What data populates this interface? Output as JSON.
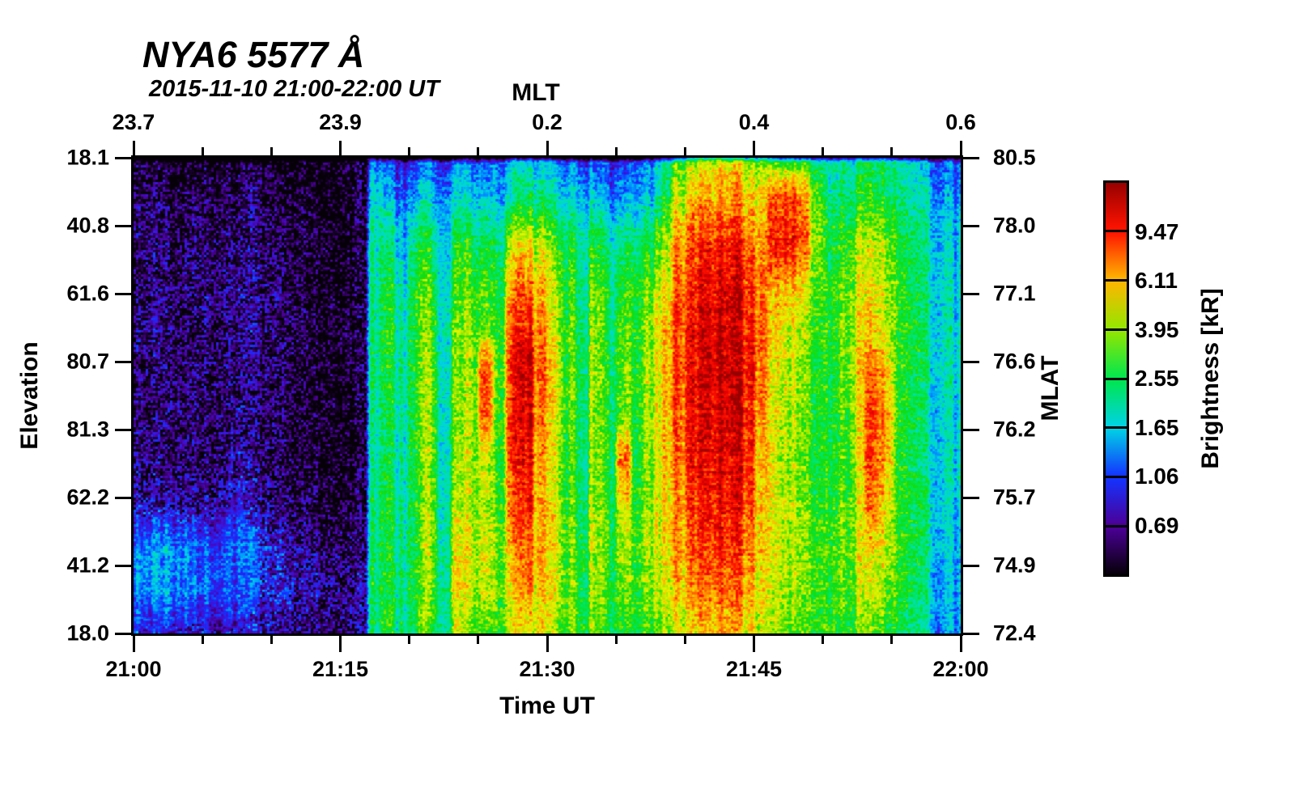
{
  "header": {
    "title": "NYA6 5577 Å",
    "subtitle": "2015-11-10 21:00-22:00 UT"
  },
  "axes": {
    "top": {
      "label": "MLT",
      "tick_labels": [
        "23.7",
        "23.9",
        "0.2",
        "0.4",
        "0.6"
      ],
      "minor_per_interval": 2
    },
    "bottom": {
      "label": "Time UT",
      "tick_labels": [
        "21:00",
        "21:15",
        "21:30",
        "21:45",
        "22:00"
      ],
      "minor_per_interval": 2
    },
    "left": {
      "label": "Elevation",
      "tick_labels": [
        "18.1",
        "40.8",
        "61.6",
        "80.7",
        "81.3",
        "62.2",
        "41.2",
        "18.0"
      ]
    },
    "right": {
      "label": "MLAT",
      "tick_labels": [
        "80.5",
        "78.0",
        "77.1",
        "76.6",
        "76.2",
        "75.7",
        "74.9",
        "72.4"
      ]
    }
  },
  "colorbar": {
    "label": "Brightness [kR]",
    "tick_labels": [
      "9.47",
      "6.11",
      "3.95",
      "2.55",
      "1.65",
      "1.06",
      "0.69"
    ]
  },
  "chart_data": {
    "type": "heatmap",
    "title": "NYA6 5577 Å",
    "subtitle": "2015-11-10 21:00-22:00 UT",
    "station": "NYA6",
    "wavelength_angstrom": 5577,
    "x_axis": {
      "label": "Time UT",
      "start": "21:00",
      "end": "22:00",
      "minutes": 60,
      "major_ticks": [
        "21:00",
        "21:15",
        "21:30",
        "21:45",
        "22:00"
      ],
      "minor_tick_minutes": 5
    },
    "x_axis_top": {
      "label": "MLT",
      "major_ticks": [
        "23.7",
        "23.9",
        "0.2",
        "0.4",
        "0.6"
      ]
    },
    "y_axis_left": {
      "label": "Elevation",
      "ticks": [
        18.1,
        40.8,
        61.6,
        80.7,
        81.3,
        62.2,
        41.2,
        18.0
      ]
    },
    "y_axis_right": {
      "label": "MLAT",
      "ticks": [
        80.5,
        78.0,
        77.1,
        76.6,
        76.2,
        75.7,
        74.9,
        72.4
      ]
    },
    "value_axis": {
      "label": "Brightness [kR]",
      "scale": "log",
      "min": 0.446,
      "max": 14.65,
      "colorbar_ticks": [
        9.47,
        6.11,
        3.95,
        2.55,
        1.65,
        1.06,
        0.69
      ]
    },
    "colorscale": [
      [
        0.0,
        "#060008"
      ],
      [
        0.0625,
        "#200040"
      ],
      [
        0.125,
        "#4b0096"
      ],
      [
        0.1875,
        "#3c14dc"
      ],
      [
        0.25,
        "#1432ff"
      ],
      [
        0.3125,
        "#008cff"
      ],
      [
        0.375,
        "#00d2e6"
      ],
      [
        0.4375,
        "#00e1aa"
      ],
      [
        0.5,
        "#00e650"
      ],
      [
        0.5625,
        "#14dc0a"
      ],
      [
        0.625,
        "#96e600"
      ],
      [
        0.6875,
        "#e6f500"
      ],
      [
        0.75,
        "#ffb400"
      ],
      [
        0.8125,
        "#ff6e00"
      ],
      [
        0.875,
        "#ff1400"
      ],
      [
        0.9375,
        "#e10000"
      ],
      [
        1.0,
        "#960000"
      ]
    ],
    "grid_minutes": 60,
    "grid_rows": 12,
    "row_axis_note": "rows span elevation top 18.1 through zenith to bottom 18.0",
    "columns_kR": [
      [
        0.5,
        0.55,
        0.55,
        0.6,
        0.6,
        0.6,
        0.6,
        0.65,
        0.7,
        1.25,
        1.3,
        0.85
      ],
      [
        0.5,
        0.6,
        0.6,
        0.65,
        0.65,
        0.6,
        0.6,
        0.65,
        0.75,
        1.35,
        1.4,
        0.9
      ],
      [
        0.5,
        0.55,
        0.6,
        0.6,
        0.6,
        0.6,
        0.6,
        0.6,
        0.7,
        1.4,
        1.45,
        0.9
      ],
      [
        0.45,
        0.5,
        0.55,
        0.6,
        0.55,
        0.55,
        0.55,
        0.6,
        0.65,
        1.2,
        1.3,
        0.85
      ],
      [
        0.5,
        0.55,
        0.6,
        0.65,
        0.6,
        0.6,
        0.6,
        0.6,
        0.7,
        1.15,
        1.25,
        0.8
      ],
      [
        0.55,
        0.6,
        0.65,
        0.7,
        0.65,
        0.65,
        0.6,
        0.65,
        0.7,
        1.25,
        1.35,
        0.85
      ],
      [
        0.5,
        0.6,
        0.65,
        0.7,
        0.7,
        0.65,
        0.65,
        0.7,
        0.85,
        1.35,
        1.45,
        0.9
      ],
      [
        0.55,
        0.6,
        0.65,
        0.7,
        0.7,
        0.65,
        0.7,
        0.75,
        0.95,
        1.3,
        1.25,
        0.85
      ],
      [
        0.5,
        0.6,
        0.6,
        0.65,
        0.65,
        0.6,
        0.6,
        0.65,
        0.75,
        1.05,
        1.0,
        0.8
      ],
      [
        0.45,
        0.55,
        0.6,
        0.6,
        0.6,
        0.6,
        0.55,
        0.6,
        0.65,
        0.85,
        0.9,
        0.75
      ],
      [
        0.45,
        0.5,
        0.55,
        0.6,
        0.6,
        0.55,
        0.55,
        0.55,
        0.6,
        0.78,
        0.85,
        0.72
      ],
      [
        0.45,
        0.5,
        0.5,
        0.55,
        0.55,
        0.55,
        0.5,
        0.55,
        0.6,
        0.72,
        0.82,
        0.7
      ],
      [
        0.45,
        0.5,
        0.5,
        0.5,
        0.55,
        0.5,
        0.5,
        0.5,
        0.55,
        0.67,
        0.78,
        0.68
      ],
      [
        0.45,
        0.45,
        0.5,
        0.5,
        0.5,
        0.5,
        0.5,
        0.5,
        0.55,
        0.62,
        0.73,
        0.65
      ],
      [
        0.45,
        0.45,
        0.45,
        0.5,
        0.5,
        0.5,
        0.45,
        0.5,
        0.5,
        0.6,
        0.7,
        0.62
      ],
      [
        0.45,
        0.45,
        0.45,
        0.45,
        0.5,
        0.45,
        0.45,
        0.45,
        0.5,
        0.56,
        0.65,
        0.6
      ],
      [
        0.5,
        0.5,
        0.5,
        0.5,
        0.55,
        0.5,
        0.5,
        0.5,
        0.55,
        0.6,
        0.7,
        0.65
      ],
      [
        1.1,
        1.6,
        1.9,
        2.0,
        2.1,
        2.1,
        2.0,
        2.0,
        2.1,
        2.2,
        2.3,
        2.2
      ],
      [
        1.0,
        1.5,
        2.2,
        2.6,
        2.7,
        2.6,
        2.5,
        2.5,
        2.6,
        2.6,
        2.7,
        2.6
      ],
      [
        0.9,
        1.3,
        1.8,
        2.1,
        2.3,
        2.4,
        2.3,
        2.2,
        2.3,
        2.4,
        2.5,
        2.4
      ],
      [
        1.0,
        1.5,
        2.3,
        2.7,
        2.9,
        2.9,
        2.8,
        2.7,
        2.8,
        2.8,
        2.9,
        2.8
      ],
      [
        1.1,
        1.7,
        2.6,
        3.2,
        3.6,
        3.8,
        3.9,
        3.8,
        3.9,
        4.0,
        3.8,
        3.2
      ],
      [
        0.9,
        1.4,
        1.8,
        1.9,
        2.0,
        2.0,
        2.0,
        2.0,
        2.1,
        2.2,
        2.3,
        2.3
      ],
      [
        1.0,
        1.6,
        2.4,
        2.8,
        3.0,
        3.1,
        3.2,
        3.3,
        3.6,
        4.2,
        4.5,
        3.6
      ],
      [
        1.1,
        1.7,
        2.7,
        3.3,
        3.7,
        3.9,
        4.0,
        4.0,
        4.2,
        4.6,
        4.4,
        3.4
      ],
      [
        1.2,
        1.8,
        2.8,
        3.4,
        3.9,
        9.0,
        8.0,
        4.4,
        4.6,
        5.0,
        4.6,
        3.5
      ],
      [
        1.1,
        1.6,
        2.4,
        2.9,
        3.1,
        3.6,
        3.4,
        3.2,
        3.4,
        3.8,
        3.8,
        3.2
      ],
      [
        1.5,
        2.2,
        4.5,
        6.5,
        8.5,
        9.5,
        9.0,
        8.5,
        7.5,
        6.5,
        5.5,
        4.5
      ],
      [
        1.7,
        2.5,
        5.5,
        8.0,
        10.5,
        12.5,
        12.0,
        11.0,
        9.5,
        8.0,
        7.0,
        5.5
      ],
      [
        1.4,
        2.2,
        4.0,
        5.5,
        6.5,
        7.0,
        6.5,
        6.0,
        5.5,
        5.5,
        5.0,
        4.5
      ],
      [
        1.2,
        1.8,
        3.0,
        3.8,
        4.2,
        4.4,
        4.2,
        4.0,
        4.2,
        4.4,
        4.2,
        3.6
      ],
      [
        1.0,
        1.6,
        2.4,
        2.8,
        3.0,
        3.1,
        3.0,
        2.9,
        3.0,
        3.2,
        3.2,
        3.0
      ],
      [
        0.9,
        1.4,
        1.9,
        2.1,
        2.2,
        2.3,
        2.2,
        2.2,
        2.3,
        2.5,
        2.6,
        2.6
      ],
      [
        1.0,
        1.6,
        2.6,
        3.2,
        3.6,
        3.8,
        3.7,
        3.5,
        3.6,
        3.8,
        3.6,
        3.2
      ],
      [
        1.0,
        1.5,
        2.3,
        2.7,
        2.9,
        3.0,
        3.0,
        2.9,
        3.1,
        3.3,
        3.2,
        3.0
      ],
      [
        1.1,
        1.7,
        2.8,
        3.5,
        4.0,
        4.2,
        4.1,
        8.5,
        6.0,
        4.8,
        4.2,
        3.4
      ],
      [
        1.1,
        1.6,
        2.5,
        3.0,
        3.2,
        3.3,
        3.2,
        3.1,
        3.3,
        3.5,
        3.4,
        3.1
      ],
      [
        1.4,
        2.0,
        3.2,
        4.0,
        4.6,
        4.8,
        4.7,
        4.5,
        4.6,
        4.8,
        4.4,
        3.6
      ],
      [
        2.2,
        3.0,
        4.5,
        5.5,
        6.2,
        6.4,
        6.2,
        6.0,
        5.8,
        5.6,
        5.0,
        4.0
      ],
      [
        3.5,
        5.0,
        7.0,
        8.5,
        9.0,
        8.8,
        8.5,
        8.0,
        7.5,
        7.0,
        6.0,
        4.8
      ],
      [
        4.5,
        6.5,
        9.0,
        10.5,
        11.5,
        12.0,
        11.5,
        11.0,
        10.0,
        9.0,
        7.5,
        5.5
      ],
      [
        5.0,
        7.0,
        10.0,
        12.0,
        13.0,
        13.0,
        12.5,
        12.0,
        11.0,
        9.5,
        8.0,
        6.0
      ],
      [
        5.5,
        7.5,
        10.5,
        12.5,
        13.5,
        13.5,
        13.0,
        12.5,
        11.5,
        10.0,
        8.5,
        6.5
      ],
      [
        5.0,
        7.0,
        10.0,
        12.0,
        13.0,
        13.0,
        12.5,
        11.5,
        10.5,
        9.5,
        8.0,
        6.0
      ],
      [
        4.5,
        6.0,
        8.5,
        10.0,
        11.0,
        11.0,
        10.5,
        10.0,
        9.0,
        8.0,
        7.0,
        5.5
      ],
      [
        3.8,
        5.0,
        6.5,
        7.5,
        7.5,
        7.0,
        6.5,
        6.0,
        5.5,
        5.5,
        5.0,
        4.5
      ],
      [
        3.0,
        8.5,
        10.0,
        6.5,
        5.5,
        5.0,
        5.0,
        4.8,
        4.8,
        5.0,
        4.8,
        4.2
      ],
      [
        2.8,
        9.5,
        10.5,
        6.0,
        5.0,
        4.6,
        4.5,
        4.4,
        4.5,
        4.5,
        4.2,
        3.8
      ],
      [
        2.5,
        7.0,
        8.0,
        5.0,
        4.2,
        3.8,
        3.6,
        3.5,
        3.6,
        3.8,
        3.6,
        3.2
      ],
      [
        2.2,
        3.5,
        4.0,
        3.4,
        3.1,
        3.0,
        2.9,
        2.8,
        3.0,
        3.2,
        3.2,
        3.0
      ],
      [
        1.8,
        2.2,
        2.6,
        2.8,
        2.8,
        2.7,
        2.6,
        2.6,
        2.8,
        3.0,
        3.0,
        2.8
      ],
      [
        2.0,
        2.4,
        3.0,
        3.4,
        3.5,
        3.4,
        3.2,
        3.1,
        3.2,
        3.4,
        3.3,
        3.0
      ],
      [
        2.2,
        2.8,
        3.8,
        4.4,
        4.8,
        4.8,
        4.6,
        4.4,
        4.4,
        4.4,
        4.0,
        3.4
      ],
      [
        2.6,
        3.4,
        4.8,
        5.5,
        6.0,
        8.5,
        9.5,
        9.0,
        8.0,
        6.0,
        4.8,
        3.8
      ],
      [
        2.4,
        3.0,
        4.2,
        4.8,
        5.0,
        6.5,
        7.5,
        7.0,
        6.0,
        5.0,
        4.2,
        3.4
      ],
      [
        1.9,
        2.3,
        2.9,
        3.2,
        3.2,
        3.1,
        3.0,
        3.0,
        3.1,
        3.2,
        3.0,
        2.7
      ],
      [
        1.7,
        2.1,
        2.5,
        2.7,
        2.7,
        2.6,
        2.5,
        2.5,
        2.6,
        2.7,
        2.6,
        2.3
      ],
      [
        1.5,
        1.9,
        2.2,
        2.3,
        2.3,
        2.3,
        2.2,
        2.2,
        2.3,
        2.3,
        2.2,
        2.0
      ],
      [
        1.3,
        1.7,
        2.0,
        2.1,
        2.1,
        2.1,
        2.0,
        2.0,
        2.0,
        1.9,
        1.7,
        1.5
      ],
      [
        1.1,
        1.4,
        1.7,
        1.8,
        1.9,
        1.9,
        1.8,
        1.8,
        1.7,
        1.6,
        1.5,
        1.4
      ]
    ]
  }
}
